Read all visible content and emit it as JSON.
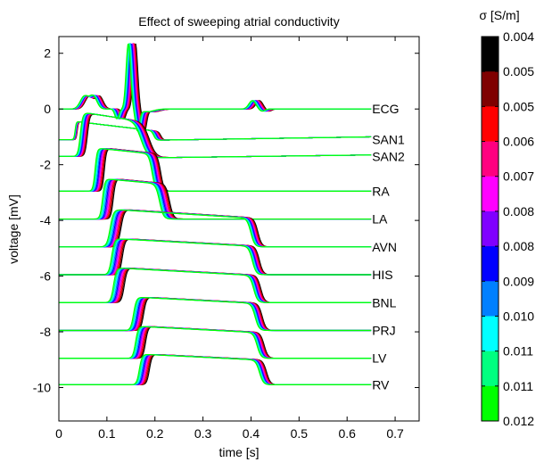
{
  "chart_data": {
    "type": "line",
    "title": "Effect of sweeping atrial conductivity",
    "xlabel": "time [s]",
    "ylabel": "voltage [mV]",
    "xlim": [
      0,
      0.75
    ],
    "ylim": [
      -11.2,
      2.6
    ],
    "x_ticks": [
      0,
      0.1,
      0.2,
      0.3,
      0.4,
      0.5,
      0.6,
      0.7
    ],
    "x_tick_labels": [
      "0",
      "0.1",
      "0.2",
      "0.3",
      "0.4",
      "0.5",
      "0.6",
      "0.7"
    ],
    "y_ticks": [
      2,
      0,
      -2,
      -4,
      -6,
      -8,
      -10
    ],
    "y_tick_labels": [
      "2",
      "0",
      "-2",
      "-4",
      "-6",
      "-8",
      "-10"
    ],
    "grid": false,
    "traces": [
      {
        "label": "ECG",
        "baseline": 0.0
      },
      {
        "label": "SAN1",
        "baseline": -1.1
      },
      {
        "label": "SAN2",
        "baseline": -1.7
      },
      {
        "label": "RA",
        "baseline": -2.95
      },
      {
        "label": "LA",
        "baseline": -3.95
      },
      {
        "label": "AVN",
        "baseline": -4.95
      },
      {
        "label": "HIS",
        "baseline": -5.95
      },
      {
        "label": "BNL",
        "baseline": -6.95
      },
      {
        "label": "PRJ",
        "baseline": -7.95
      },
      {
        "label": "LV",
        "baseline": -8.95
      },
      {
        "label": "RV",
        "baseline": -9.9
      }
    ],
    "colorbar": {
      "title": "σ [S/m]",
      "labels": [
        "0.004",
        "0.005",
        "0.005",
        "0.006",
        "0.007",
        "0.008",
        "0.008",
        "0.009",
        "0.010",
        "0.011",
        "0.011",
        "0.012"
      ],
      "colors": [
        "#000000",
        "#7f0000",
        "#ff0000",
        "#ff0080",
        "#ff00ff",
        "#8000ff",
        "#0000ff",
        "#0080ff",
        "#00ffff",
        "#00ff80",
        "#00ff00"
      ]
    },
    "series": [
      {
        "sigma": "0.004",
        "color": "#000000",
        "shift": 0.0075
      },
      {
        "sigma": "0.005",
        "color": "#7f0000",
        "shift": 0.006
      },
      {
        "sigma": "0.005",
        "color": "#ff0000",
        "shift": 0.0045
      },
      {
        "sigma": "0.006",
        "color": "#ff0080",
        "shift": 0.003
      },
      {
        "sigma": "0.007",
        "color": "#ff00ff",
        "shift": 0.0015
      },
      {
        "sigma": "0.008",
        "color": "#8000ff",
        "shift": 0.0
      },
      {
        "sigma": "0.008",
        "color": "#0000ff",
        "shift": -0.0015
      },
      {
        "sigma": "0.009",
        "color": "#0080ff",
        "shift": -0.003
      },
      {
        "sigma": "0.010",
        "color": "#00ffff",
        "shift": -0.0045
      },
      {
        "sigma": "0.011",
        "color": "#00ff80",
        "shift": -0.006
      },
      {
        "sigma": "0.011",
        "color": "#00ff00",
        "shift": -0.0075
      }
    ]
  }
}
